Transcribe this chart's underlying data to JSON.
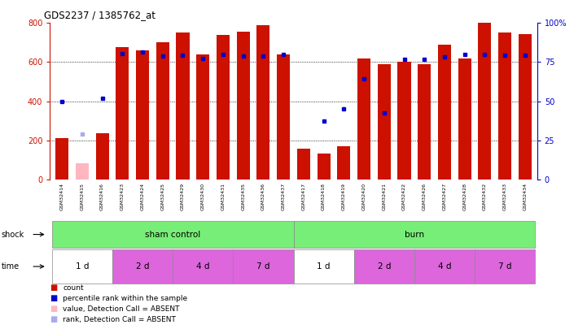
{
  "title": "GDS2237 / 1385762_at",
  "samples": [
    "GSM32414",
    "GSM32415",
    "GSM32416",
    "GSM32423",
    "GSM32424",
    "GSM32425",
    "GSM32429",
    "GSM32430",
    "GSM32431",
    "GSM32435",
    "GSM32436",
    "GSM32437",
    "GSM32417",
    "GSM32418",
    "GSM32419",
    "GSM32420",
    "GSM32421",
    "GSM32422",
    "GSM32426",
    "GSM32427",
    "GSM32428",
    "GSM32432",
    "GSM32433",
    "GSM32434"
  ],
  "bar_values": [
    210,
    80,
    235,
    675,
    660,
    700,
    750,
    640,
    740,
    755,
    790,
    640,
    155,
    130,
    170,
    620,
    590,
    600,
    590,
    690,
    620,
    800,
    750,
    745
  ],
  "bar_absent": [
    false,
    true,
    false,
    false,
    false,
    false,
    false,
    false,
    false,
    false,
    false,
    false,
    false,
    false,
    false,
    false,
    false,
    false,
    false,
    false,
    false,
    false,
    false,
    false
  ],
  "rank_values": [
    400,
    230,
    415,
    645,
    650,
    630,
    635,
    620,
    640,
    630,
    630,
    640,
    null,
    300,
    360,
    515,
    340,
    615,
    615,
    625,
    640,
    640,
    635,
    635
  ],
  "rank_absent": [
    false,
    true,
    false,
    false,
    false,
    false,
    false,
    false,
    false,
    false,
    false,
    false,
    false,
    false,
    false,
    false,
    false,
    false,
    false,
    false,
    false,
    false,
    false,
    false
  ],
  "shock_groups": [
    {
      "label": "sham control",
      "start": 0,
      "end": 11
    },
    {
      "label": "burn",
      "start": 12,
      "end": 23
    }
  ],
  "time_groups": [
    {
      "label": "1 d",
      "start": 0,
      "end": 2,
      "color": "#ffffff"
    },
    {
      "label": "2 d",
      "start": 3,
      "end": 5,
      "color": "#dd66dd"
    },
    {
      "label": "4 d",
      "start": 6,
      "end": 8,
      "color": "#dd66dd"
    },
    {
      "label": "7 d",
      "start": 9,
      "end": 11,
      "color": "#dd66dd"
    },
    {
      "label": "1 d",
      "start": 12,
      "end": 14,
      "color": "#ffffff"
    },
    {
      "label": "2 d",
      "start": 15,
      "end": 17,
      "color": "#dd66dd"
    },
    {
      "label": "4 d",
      "start": 18,
      "end": 20,
      "color": "#dd66dd"
    },
    {
      "label": "7 d",
      "start": 21,
      "end": 23,
      "color": "#dd66dd"
    }
  ],
  "ylim_left": [
    0,
    800
  ],
  "ylim_right": [
    0,
    100
  ],
  "yticks_left": [
    0,
    200,
    400,
    600,
    800
  ],
  "ytick_labels_left": [
    "0",
    "200",
    "400",
    "600",
    "800"
  ],
  "yticks_right": [
    0,
    25,
    50,
    75,
    100
  ],
  "ytick_labels_right": [
    "0",
    "25",
    "50",
    "75",
    "100%"
  ],
  "bar_color": "#cc1100",
  "bar_absent_color": "#ffb6c1",
  "rank_color": "#0000cc",
  "rank_absent_color": "#aaaaee",
  "shock_color": "#77ee77",
  "bg_color": "#ffffff",
  "xtick_bg": "#dddddd",
  "left_axis_color": "#cc1100",
  "right_axis_color": "#0000cc",
  "grid_color": "#000000",
  "shock_border": "#888888",
  "time_border": "#888888"
}
